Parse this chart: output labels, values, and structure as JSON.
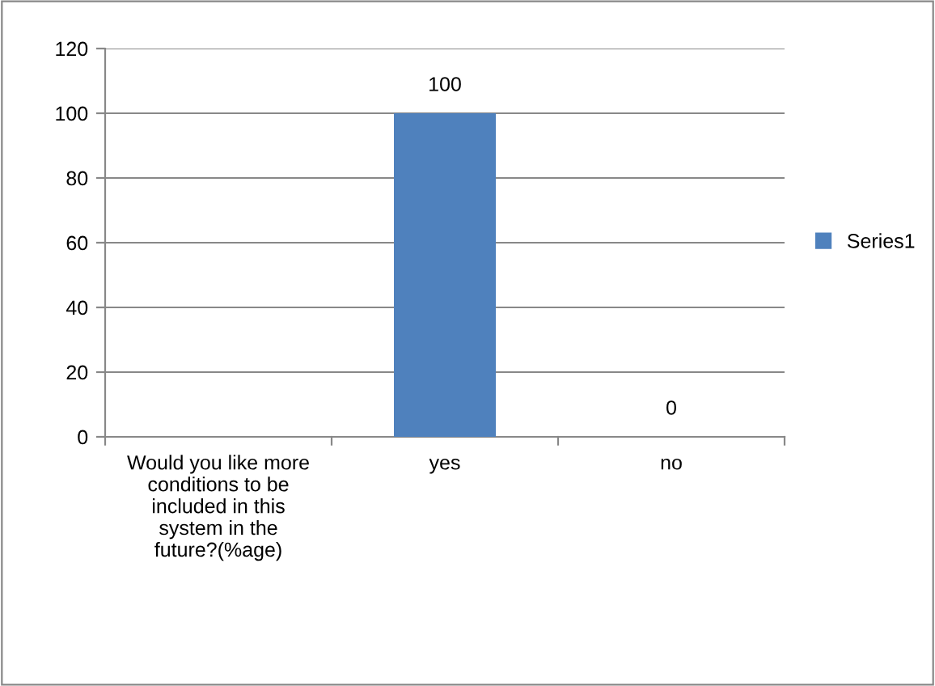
{
  "chart_data": {
    "type": "bar",
    "categories": [
      "Would you like more\nconditions to be\nincluded in this\nsystem in the\nfuture?(%age)",
      "yes",
      "no"
    ],
    "series": [
      {
        "name": "Series1",
        "color": "#4f81bd",
        "values": [
          null,
          100,
          0
        ],
        "value_labels": [
          null,
          "100",
          "0"
        ]
      }
    ],
    "ylim": [
      0,
      120
    ],
    "yticks": [
      0,
      20,
      40,
      60,
      80,
      100,
      120
    ],
    "grid": "y",
    "legend": "right"
  }
}
